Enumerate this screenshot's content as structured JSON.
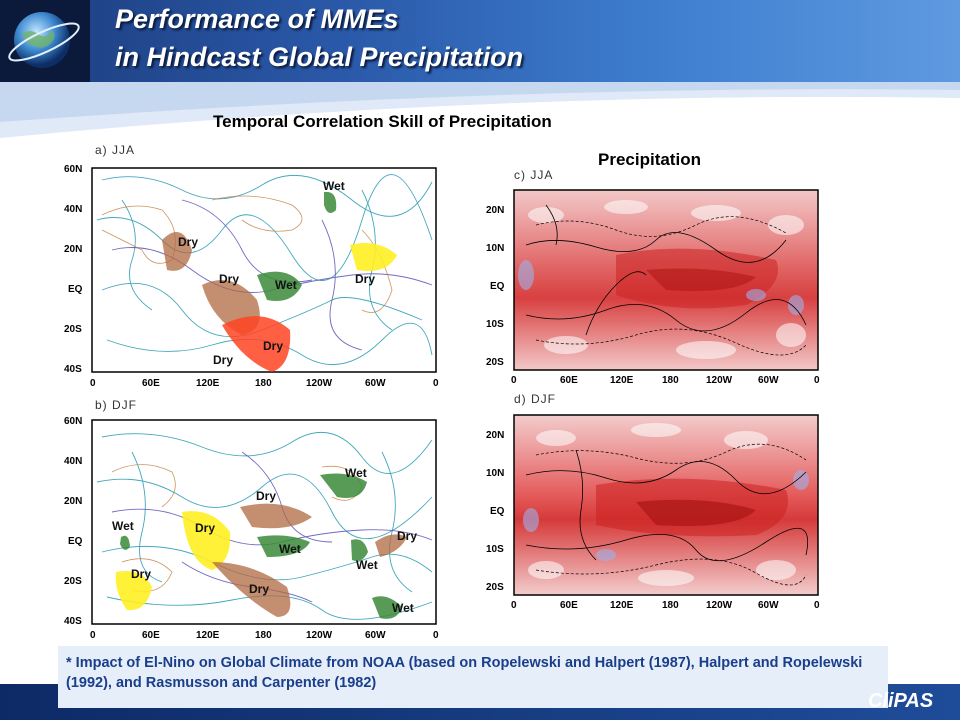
{
  "header": {
    "title_line1": "Performance of MMEs",
    "title_line2": "in Hindcast Global Precipitation"
  },
  "main_title": "Temporal Correlation Skill of Precipitation",
  "precip_title": "Precipitation",
  "left_maps": {
    "panel_a": "a) JJA",
    "panel_b": "b) DJF",
    "lat_ticks": [
      "60N",
      "40N",
      "20N",
      "EQ",
      "20S",
      "40S"
    ],
    "lon_ticks": [
      "0",
      "60E",
      "120E",
      "180",
      "120W",
      "60W",
      "0"
    ],
    "jja_regions": [
      {
        "label": "Wet",
        "color": "#3a8a3a"
      },
      {
        "label": "Dry",
        "color": "#b06a42"
      },
      {
        "label": "Dry",
        "color": "#b06a42"
      },
      {
        "label": "Wet",
        "color": "#3a8a3a"
      },
      {
        "label": "Dry",
        "color": "#ffee22"
      },
      {
        "label": "Dry",
        "color": "#ff4422"
      },
      {
        "label": "Dry",
        "color": "#b06a42"
      }
    ],
    "djf_regions": [
      {
        "label": "Wet",
        "color": "#3a8a3a"
      },
      {
        "label": "Dry",
        "color": "#b06a42"
      },
      {
        "label": "Wet",
        "color": "#3a8a3a"
      },
      {
        "label": "Dry",
        "color": "#ffee22"
      },
      {
        "label": "Wet",
        "color": "#3a8a3a"
      },
      {
        "label": "Dry",
        "color": "#b06a42"
      },
      {
        "label": "Dry",
        "color": "#ffee22"
      },
      {
        "label": "Wet",
        "color": "#3a8a3a"
      },
      {
        "label": "Dry",
        "color": "#b06a42"
      },
      {
        "label": "Wet",
        "color": "#3a8a3a"
      }
    ]
  },
  "right_maps": {
    "panel_c": "c) JJA",
    "panel_d": "d) DJF",
    "lat_ticks": [
      "20N",
      "10N",
      "EQ",
      "10S",
      "20S"
    ],
    "lon_ticks": [
      "0",
      "60E",
      "120E",
      "180",
      "120W",
      "60W",
      "0"
    ]
  },
  "footnote": "* Impact of El-Nino on Global Climate from NOAA (based on Ropelewski and Halpert (1987), Halpert and Ropelewski (1992), and Rasmusson and Carpenter (1982)",
  "brand": "CliPAS"
}
